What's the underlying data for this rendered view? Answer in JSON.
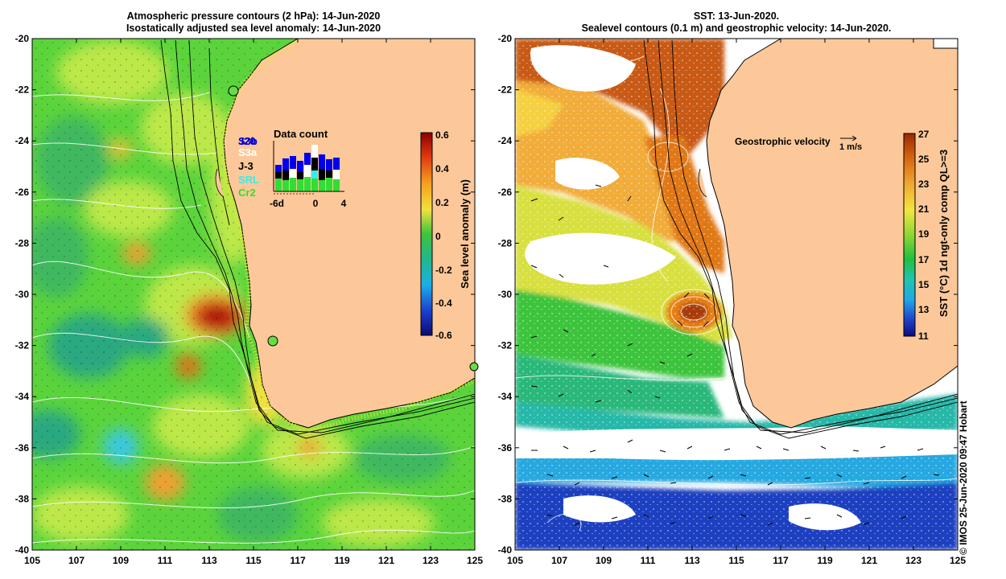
{
  "left_panel": {
    "title_line1": "Atmospheric pressure contours (2 hPa): 14-Jun-2020",
    "title_line2": "Isostatically adjusted sea level anomaly: 14-Jun-2020",
    "colorbar": {
      "label": "Sea level anomaly (m)",
      "ticks": [
        "0.6",
        "0.4",
        "0.2",
        "0",
        "-0.2",
        "-0.4",
        "-0.6"
      ]
    },
    "data_count": {
      "title": "Data count",
      "x_ticks": [
        "-6d",
        "0",
        "4"
      ],
      "missions": [
        {
          "name": "S3b",
          "color": "#0000ee"
        },
        {
          "name": "J20",
          "color": "#0000aa"
        },
        {
          "name": "S3a",
          "color": "#ffffff"
        },
        {
          "name": "J-3",
          "color": "#000000"
        },
        {
          "name": "SRL",
          "color": "#33eeee"
        },
        {
          "name": "Cr2",
          "color": "#33dd33"
        }
      ]
    }
  },
  "right_panel": {
    "title_line1": "SST: 13-Jun-2020.",
    "title_line2": "Sealevel contours (0.1 m) and geostrophic velocity: 14-Jun-2020.",
    "colorbar": {
      "label": "SST (°C) 1d ngt-only comp QL>=3",
      "ticks": [
        "27",
        "25",
        "23",
        "21",
        "19",
        "17",
        "15",
        "13",
        "11"
      ]
    },
    "velocity_legend": {
      "label": "Geostrophic velocity",
      "scale": "1 m/s"
    }
  },
  "axes": {
    "lat_ticks": [
      "-20",
      "-22",
      "-24",
      "-26",
      "-28",
      "-30",
      "-32",
      "-34",
      "-36",
      "-38",
      "-40"
    ],
    "lon_ticks": [
      "105",
      "107",
      "109",
      "111",
      "113",
      "115",
      "117",
      "119",
      "121",
      "123",
      "125"
    ]
  },
  "credit": "© IMOS 25-Jun-2020 09:47 Hobart",
  "colors": {
    "land": "#fcc89a",
    "ocean_left": "#5bd43c",
    "frame": "#000000"
  }
}
